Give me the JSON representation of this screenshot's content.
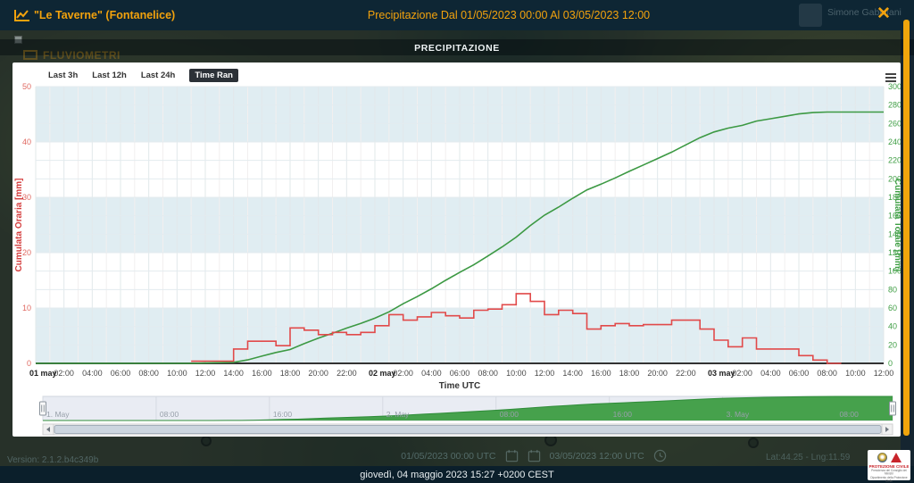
{
  "header": {
    "station_name": "\"Le Taverne\" (Fontanelice)",
    "title": "Precipitazione Dal 01/05/2023 00:00 Al 03/05/2023 12:00",
    "user_name": "Simone Gabellani",
    "close_label": "✕"
  },
  "overlay": {
    "section_title": "PRECIPITAZIONE",
    "background_label": "FLUVIOMETRI"
  },
  "range_selector": {
    "buttons": [
      {
        "label": "Last 3h",
        "selected": false
      },
      {
        "label": "Last 12h",
        "selected": false
      },
      {
        "label": "Last 24h",
        "selected": false
      },
      {
        "label": "Time Ran",
        "selected": true
      }
    ]
  },
  "chart_data": {
    "type": "line",
    "title": "",
    "xlabel": "Time UTC",
    "x_start": "01/05/2023 00:00",
    "x_end": "03/05/2023 12:00",
    "x_hours_total": 60,
    "x_tick_interval_hours": 2,
    "x_day_labels": [
      "01 may",
      "02 may",
      "03 may"
    ],
    "x_tick_labels": [
      "01 may",
      "02:00",
      "04:00",
      "06:00",
      "08:00",
      "10:00",
      "12:00",
      "14:00",
      "16:00",
      "18:00",
      "20:00",
      "22:00",
      "02 may",
      "02:00",
      "04:00",
      "06:00",
      "08:00",
      "10:00",
      "12:00",
      "14:00",
      "16:00",
      "18:00",
      "20:00",
      "22:00",
      "03 may",
      "02:00",
      "04:00",
      "06:00",
      "08:00",
      "10:00",
      "12:00"
    ],
    "y_left": {
      "label": "Cumulata Oraria [mm]",
      "min": 0,
      "max": 50,
      "tick": 10,
      "color": "#e05252"
    },
    "y_right": {
      "label": "Cumulata Totale [mm]",
      "min": 0,
      "max": 300,
      "tick": 20,
      "color": "#3f9e44"
    },
    "grid": true,
    "legend": "none",
    "series": [
      {
        "name": "Cumulata Oraria",
        "type": "step",
        "axis": "left",
        "color": "#e14a4a",
        "hourly_values": [
          0,
          0,
          0,
          0,
          0,
          0,
          0,
          0,
          0,
          0,
          0,
          0.4,
          0.4,
          0.4,
          2.6,
          4,
          4,
          3.2,
          6.4,
          6,
          5.2,
          5.6,
          5.2,
          5.6,
          6.8,
          8.8,
          7.8,
          8.4,
          9.2,
          8.6,
          8.2,
          9.6,
          9.8,
          10.6,
          12.6,
          11.2,
          8.8,
          9.6,
          9,
          6.2,
          6.8,
          7.2,
          6.8,
          7,
          7,
          7.8,
          7.8,
          6.2,
          4.2,
          3,
          4.6,
          2.6,
          2.6,
          2.6,
          1.4,
          0.6,
          0,
          0,
          0,
          0
        ]
      },
      {
        "name": "Cumulata Totale",
        "type": "line",
        "axis": "right",
        "color": "#3c9943",
        "derived": "cumulative_of_hourly",
        "end_value": 272.4
      }
    ]
  },
  "navigator": {
    "labels": [
      "1. May",
      "08:00",
      "16:00",
      "2. May",
      "08:00",
      "16:00",
      "3. May",
      "08:00"
    ],
    "tick_interval_hours": 8
  },
  "footer": {
    "from_date": "01/05/2023 00:00 UTC",
    "to_date": "03/05/2023 12:00 UTC",
    "version": "Version: 2.1.2.b4c349b",
    "coords": "Lat:44.25 - Lng:11.59",
    "datetime": "giovedì, 04 maggio 2023 15:27 +0200 CEST",
    "logo": {
      "title": "PROTEZIONE CIVILE",
      "line1": "Presidenza del Consiglio dei Ministri",
      "line2": "Dipartimento della Protezione Civile"
    }
  },
  "colors": {
    "accent_orange": "#f2a20d",
    "header_bg": "#0e2634",
    "band_light": "#e0edf2",
    "series_red": "#e14a4a",
    "series_green": "#3c9943",
    "navigator_green": "#46a14c"
  }
}
